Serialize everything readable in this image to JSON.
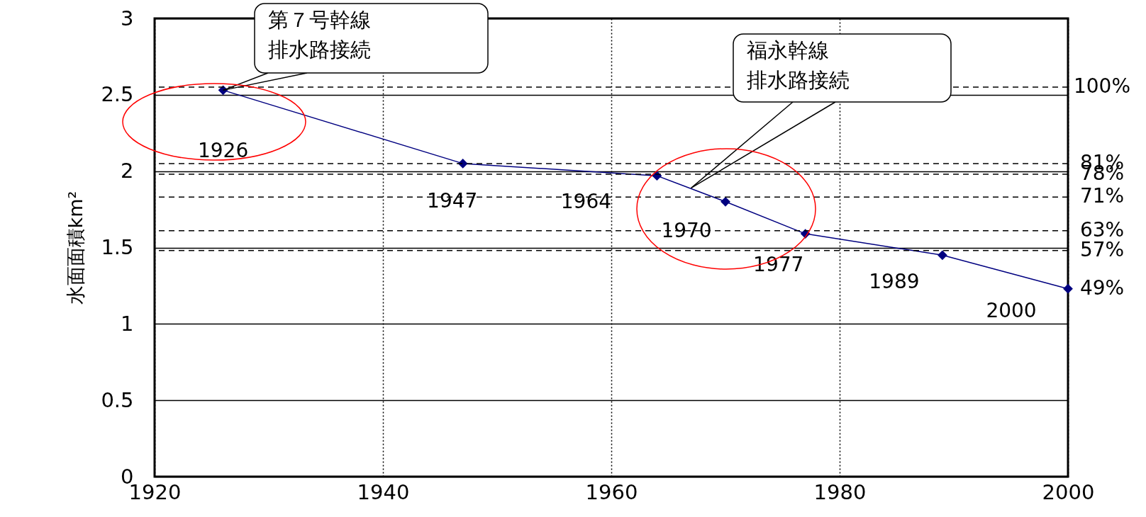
{
  "chart_data": {
    "type": "line",
    "ylabel": "水面面積km²",
    "x": [
      1926,
      1947,
      1964,
      1970,
      1977,
      1989,
      2000
    ],
    "series": [
      {
        "color": "#000080",
        "values": [
          2.53,
          2.05,
          1.97,
          1.8,
          1.59,
          1.45,
          1.23
        ]
      }
    ],
    "xlim": [
      1920,
      2000
    ],
    "xticks": [
      1920,
      1940,
      1960,
      1980,
      2000
    ],
    "ylim": [
      0,
      3
    ],
    "yticks": [
      0,
      0.5,
      1,
      1.5,
      2,
      2.5,
      3
    ],
    "grid": true,
    "marker": "diamond",
    "line_style": "solid",
    "ref_lines": [
      {
        "axis": "y",
        "value": 2.55,
        "line_style": "dashed",
        "color": "#000000"
      },
      {
        "axis": "y",
        "value": 2.05,
        "line_style": "dashed",
        "color": "#000000"
      },
      {
        "axis": "y",
        "value": 1.98,
        "line_style": "dashed",
        "color": "#000000"
      },
      {
        "axis": "y",
        "value": 1.83,
        "line_style": "dashed",
        "color": "#000000"
      },
      {
        "axis": "y",
        "value": 1.61,
        "line_style": "dashed",
        "color": "#000000"
      },
      {
        "axis": "y",
        "value": 1.48,
        "line_style": "dashed",
        "color": "#000000"
      }
    ],
    "annotations": [
      {
        "text": "第７号幹線排水路接続",
        "x": 1926,
        "y": 2.53
      },
      {
        "text": "福永幹線排水路接続",
        "x": 1967,
        "y": 1.89
      },
      {
        "text": "1926",
        "x": 1926,
        "y": 2.53
      },
      {
        "text": "1947",
        "x": 1947,
        "y": 2.05
      },
      {
        "text": "1964",
        "x": 1964,
        "y": 1.97
      },
      {
        "text": "1970",
        "x": 1970,
        "y": 1.8
      },
      {
        "text": "1977",
        "x": 1977,
        "y": 1.59
      },
      {
        "text": "1989",
        "x": 1989,
        "y": 1.45
      },
      {
        "text": "2000",
        "x": 2000,
        "y": 1.23
      },
      {
        "text": "49%",
        "x": 2000,
        "y": 1.23
      },
      {
        "text": "100%",
        "x": 2000,
        "y": 2.55
      },
      {
        "text": "81%",
        "x": 2000,
        "y": 2.05
      },
      {
        "text": "78%",
        "x": 2000,
        "y": 1.98
      },
      {
        "text": "71%",
        "x": 2000,
        "y": 1.83
      },
      {
        "text": "63%",
        "x": 2000,
        "y": 1.61
      },
      {
        "text": "57%",
        "x": 2000,
        "y": 1.48
      }
    ]
  }
}
